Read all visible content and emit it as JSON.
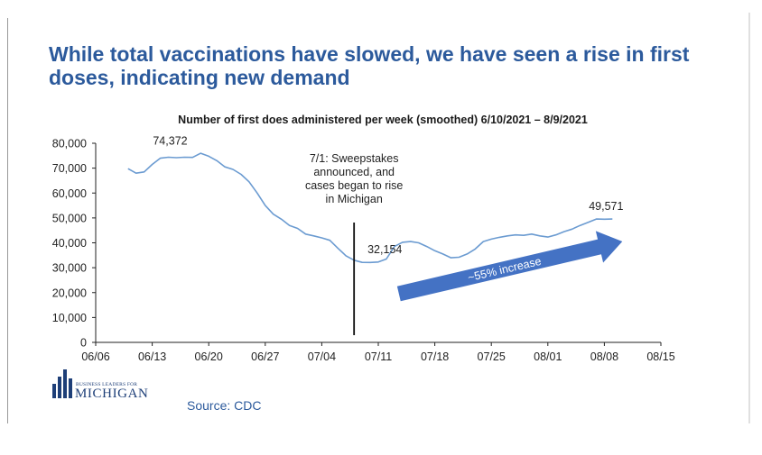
{
  "headline": "While total vaccinations have slowed, we have seen a rise in first doses, indicating new demand",
  "source": "Source: CDC",
  "logo": {
    "small": "BUSINESS LEADERS FOR",
    "big": "MICHIGAN",
    "icon": "building-columns-icon"
  },
  "colors": {
    "headline": "#2c5a9c",
    "line": "#6b9bd1",
    "arrow": "#4472c4",
    "logo": "#1e3f78"
  },
  "chart_data": {
    "type": "line",
    "title": "Number of first does administered per week (smoothed) 6/10/2021 – 8/9/2021",
    "x_ticks": [
      "06/06",
      "06/13",
      "06/20",
      "06/27",
      "07/04",
      "07/11",
      "07/18",
      "07/25",
      "08/01",
      "08/08",
      "08/15"
    ],
    "y_ticks": [
      "0",
      "10,000",
      "20,000",
      "30,000",
      "40,000",
      "50,000",
      "60,000",
      "70,000",
      "80,000"
    ],
    "ylim": [
      0,
      80000
    ],
    "xlim": [
      "2021-06-06",
      "2021-08-15"
    ],
    "grid": false,
    "series": [
      {
        "x": [
          "2021-06-10",
          "2021-06-11",
          "2021-06-12",
          "2021-06-13",
          "2021-06-14",
          "2021-06-15",
          "2021-06-16",
          "2021-06-17",
          "2021-06-18",
          "2021-06-19",
          "2021-06-20",
          "2021-06-21",
          "2021-06-22",
          "2021-06-23",
          "2021-06-24",
          "2021-06-25",
          "2021-06-26",
          "2021-06-27",
          "2021-06-28",
          "2021-06-29",
          "2021-06-30",
          "2021-07-01",
          "2021-07-02",
          "2021-07-03",
          "2021-07-04",
          "2021-07-05",
          "2021-07-06",
          "2021-07-07",
          "2021-07-08",
          "2021-07-09",
          "2021-07-10",
          "2021-07-11",
          "2021-07-12",
          "2021-07-13",
          "2021-07-14",
          "2021-07-15",
          "2021-07-16",
          "2021-07-17",
          "2021-07-18",
          "2021-07-19",
          "2021-07-20",
          "2021-07-21",
          "2021-07-22",
          "2021-07-23",
          "2021-07-24",
          "2021-07-25",
          "2021-07-26",
          "2021-07-27",
          "2021-07-28",
          "2021-07-29",
          "2021-07-30",
          "2021-07-31",
          "2021-08-01",
          "2021-08-02",
          "2021-08-03",
          "2021-08-04",
          "2021-08-05",
          "2021-08-06",
          "2021-08-07",
          "2021-08-08",
          "2021-08-09"
        ],
        "values": [
          69800,
          68000,
          68500,
          71500,
          74000,
          74372,
          74200,
          74400,
          74300,
          76000,
          74800,
          73000,
          70500,
          69500,
          67500,
          64500,
          60000,
          55000,
          51500,
          49500,
          47000,
          45800,
          43500,
          42800,
          42000,
          41000,
          37800,
          34800,
          33000,
          32154,
          32100,
          32300,
          33500,
          38500,
          40200,
          40500,
          40000,
          38500,
          36800,
          35500,
          34000,
          34200,
          35500,
          37500,
          40500,
          41500,
          42200,
          42800,
          43200,
          43000,
          43500,
          42800,
          42300,
          43200,
          44500,
          45500,
          47000,
          48200,
          49571,
          49500,
          49571
        ]
      }
    ],
    "annotations": [
      {
        "text_lines": [
          "7/1: Sweepstakes",
          "announced, and",
          "cases began to rise",
          "in Michigan"
        ],
        "x": "2021-07-08"
      },
      {
        "text": "74,372",
        "x": "2021-06-15",
        "y": 74372
      },
      {
        "text": "32,154",
        "x": "2021-07-09",
        "y": 32154
      },
      {
        "text": "49,571",
        "x": "2021-08-09",
        "y": 49571
      },
      {
        "text": "~55% increase",
        "from": "2021-07-14",
        "to": "2021-08-10"
      }
    ]
  }
}
